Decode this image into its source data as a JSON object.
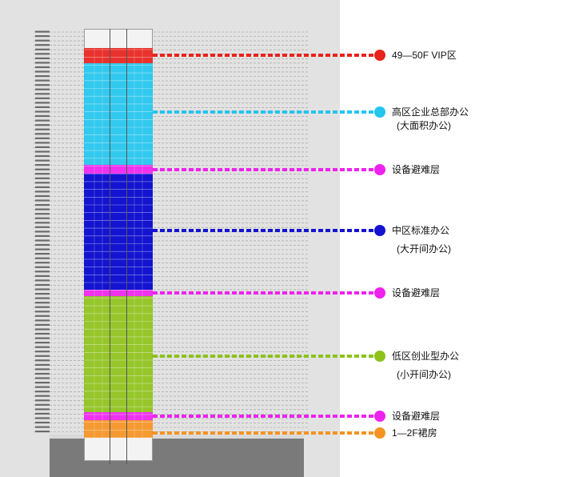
{
  "zones": [
    {
      "key": "vip",
      "label": "49—50F VIP区",
      "sub": "",
      "color": "#e8221c"
    },
    {
      "key": "high",
      "label": "高区企业总部办公",
      "sub": "(大面积办公)",
      "color": "#22c6ee"
    },
    {
      "key": "ref1",
      "label": "设备避难层",
      "sub": "",
      "color": "#ee22ee"
    },
    {
      "key": "mid",
      "label": "中区标准办公",
      "sub": "(大开间办公)",
      "color": "#1414d0"
    },
    {
      "key": "ref2",
      "label": "设备避难层",
      "sub": "",
      "color": "#ee22ee"
    },
    {
      "key": "low",
      "label": "低区创业型办公",
      "sub": "(小开间办公)",
      "color": "#8ec21a"
    },
    {
      "key": "ref3",
      "label": "设备避难层",
      "sub": "",
      "color": "#ee22ee"
    },
    {
      "key": "podium",
      "label": "1—2F裙房",
      "sub": "",
      "color": "#f59322"
    }
  ]
}
